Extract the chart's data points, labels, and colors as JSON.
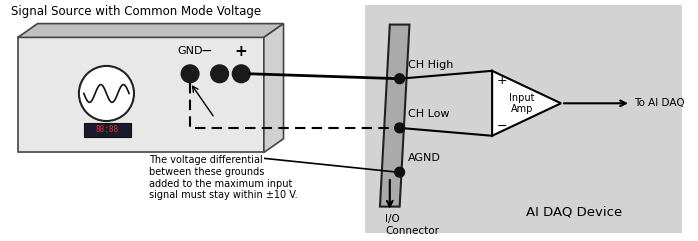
{
  "title": "Signal Source with Common Mode Voltage",
  "bg_color": "#ffffff",
  "daq_bg_color": "#d3d3d3",
  "text_color": "#000000",
  "line_color": "#000000",
  "annotation_text": "The voltage differential\nbetween these grounds\nadded to the maximum input\nsignal must stay within ±10 V.",
  "ch_high_label": "CH High",
  "ch_low_label": "CH Low",
  "agnd_label": "AGND",
  "io_connector_label": "I/O\nConnector",
  "ai_daq_label": "AI DAQ Device",
  "input_amp_label": "Input\nAmp",
  "to_ai_daq_label": "To AI DAQ",
  "gnd_label": "GND",
  "plus_label": "+",
  "minus_label": "−",
  "box_face_color": "#e8e8e8",
  "box_top_color": "#c0c0c0",
  "box_right_color": "#d0d0d0",
  "box_edge_color": "#444444",
  "conn_face_color": "#aaaaaa",
  "conn_edge_color": "#222222",
  "dot_color": "#111111",
  "wave_circle_color": "#222222",
  "lcd_bg": "#1a1a2e",
  "lcd_text": "#dd3333"
}
